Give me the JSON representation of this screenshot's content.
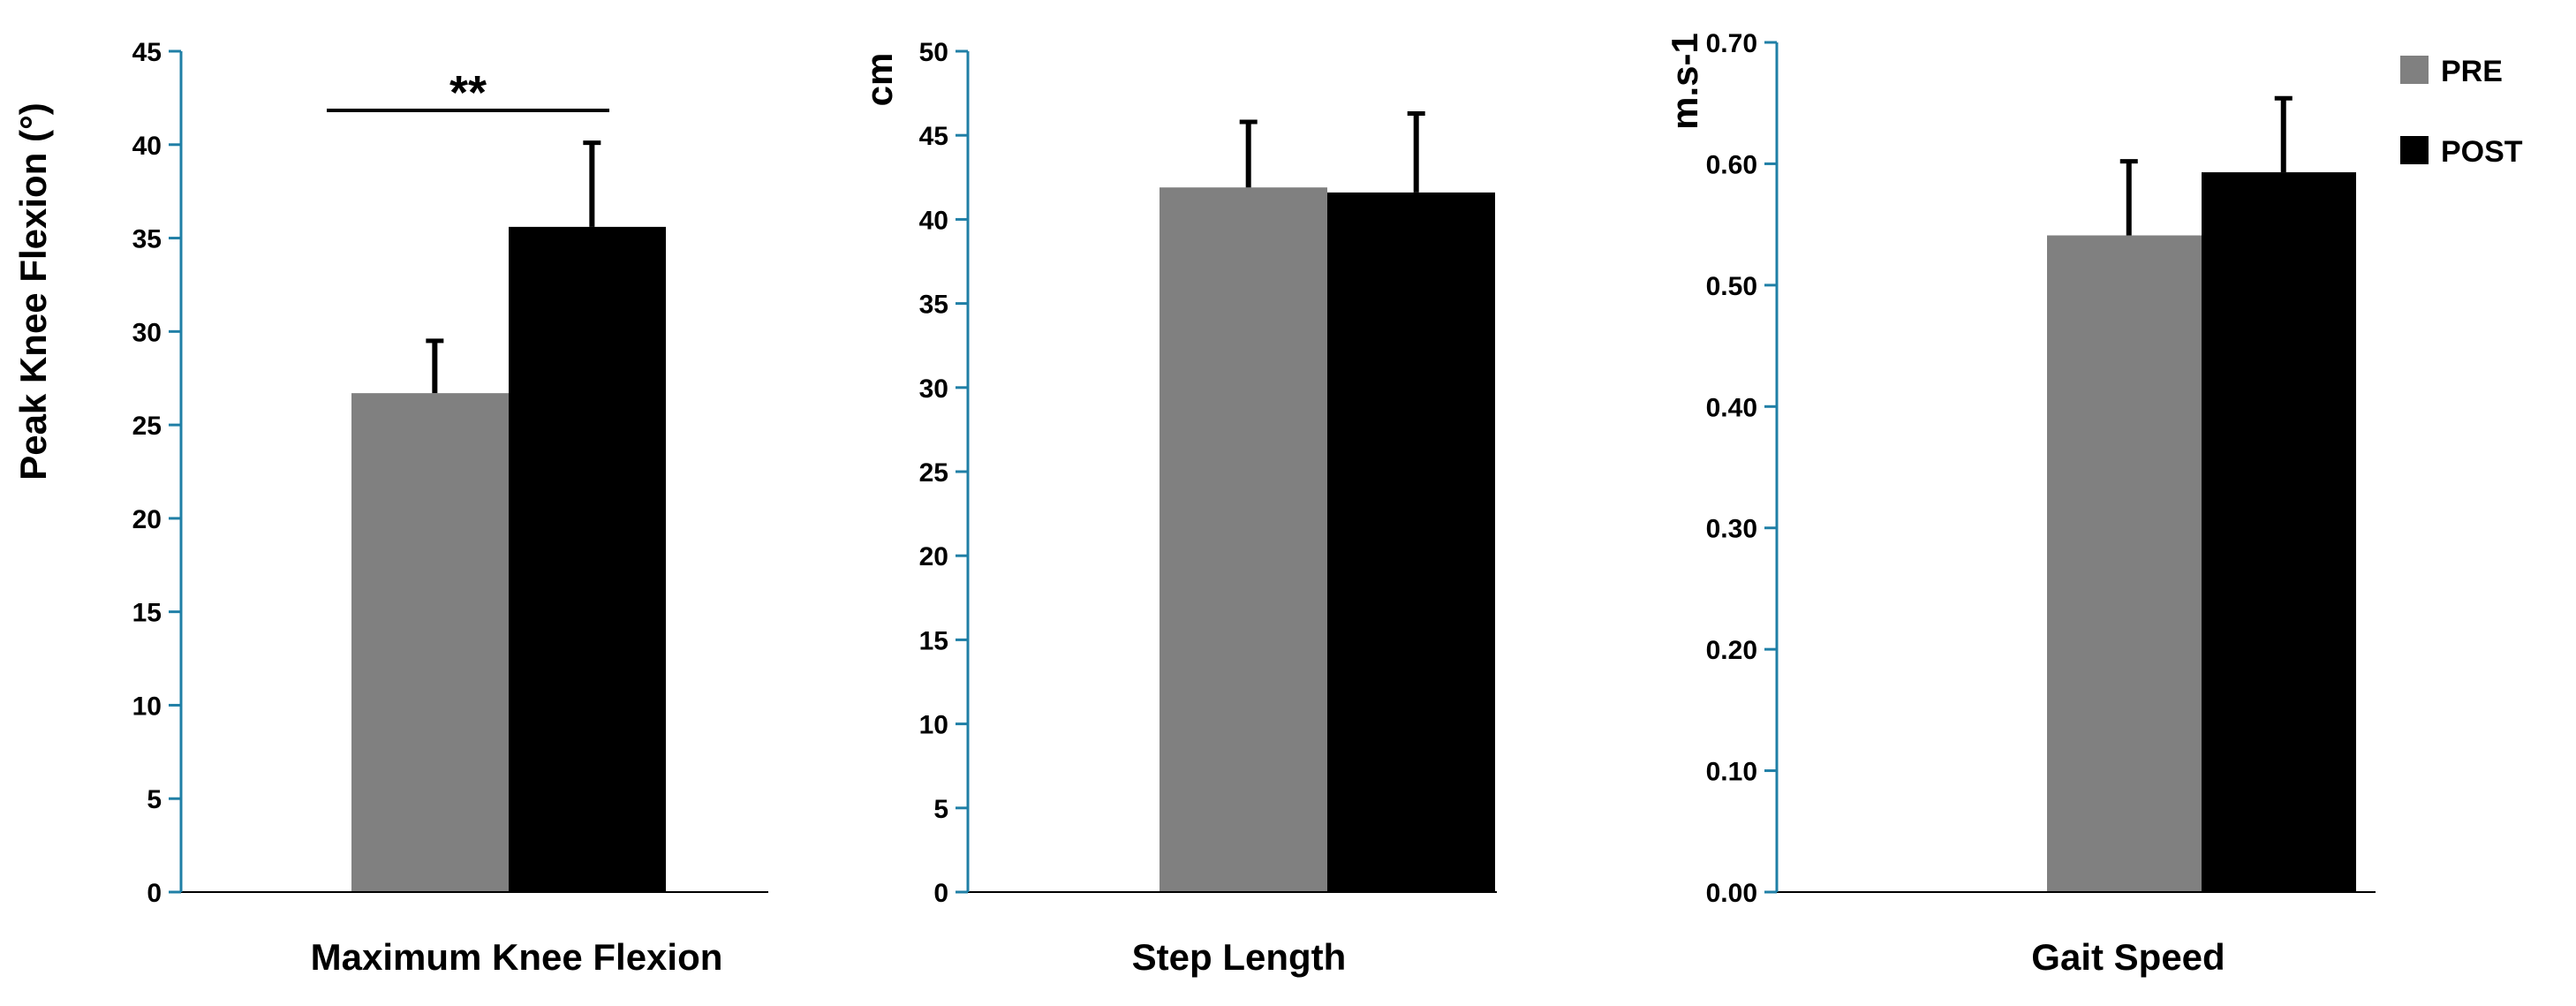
{
  "legend": [
    {
      "label": "PRE",
      "color": "#808080"
    },
    {
      "label": "POST",
      "color": "#000000"
    }
  ],
  "colors": {
    "axis": "#1f7fa6",
    "pre": "#808080",
    "post": "#000000"
  },
  "chart_data": [
    {
      "type": "bar",
      "xlabel": "Maximum Knee Flexion",
      "ylabel": "Peak Knee Flexion (°)",
      "ylim": [
        0,
        45
      ],
      "yticks": [
        {
          "value": 0,
          "label": "0"
        },
        {
          "value": 5,
          "label": "5"
        },
        {
          "value": 10,
          "label": "10"
        },
        {
          "value": 15,
          "label": "15"
        },
        {
          "value": 20,
          "label": "20"
        },
        {
          "value": 25,
          "label": "25"
        },
        {
          "value": 30,
          "label": "30"
        },
        {
          "value": 35,
          "label": "35"
        },
        {
          "value": 40,
          "label": "40"
        },
        {
          "value": 45,
          "label": "45"
        }
      ],
      "series": [
        {
          "name": "PRE",
          "value": 26.7,
          "error": 2.8
        },
        {
          "name": "POST",
          "value": 35.6,
          "error": 4.5
        }
      ],
      "significance": "**"
    },
    {
      "type": "bar",
      "xlabel": "Step Length",
      "ylabel": "cm",
      "ylim": [
        0,
        50
      ],
      "yticks": [
        {
          "value": 0,
          "label": "0"
        },
        {
          "value": 5,
          "label": "5"
        },
        {
          "value": 10,
          "label": "10"
        },
        {
          "value": 15,
          "label": "15"
        },
        {
          "value": 20,
          "label": "20"
        },
        {
          "value": 25,
          "label": "25"
        },
        {
          "value": 30,
          "label": "30"
        },
        {
          "value": 35,
          "label": "35"
        },
        {
          "value": 40,
          "label": "40"
        },
        {
          "value": 45,
          "label": "45"
        },
        {
          "value": 50,
          "label": "50"
        }
      ],
      "series": [
        {
          "name": "PRE",
          "value": 41.9,
          "error": 3.9
        },
        {
          "name": "POST",
          "value": 41.6,
          "error": 4.7
        }
      ]
    },
    {
      "type": "bar",
      "xlabel": "Gait Speed",
      "ylabel": "m.s-1",
      "ylim": [
        0,
        0.7
      ],
      "yticks": [
        {
          "value": 0,
          "label": "0.00"
        },
        {
          "value": 0.1,
          "label": "0.10"
        },
        {
          "value": 0.2,
          "label": "0.20"
        },
        {
          "value": 0.3,
          "label": "0.30"
        },
        {
          "value": 0.4,
          "label": "0.40"
        },
        {
          "value": 0.5,
          "label": "0.50"
        },
        {
          "value": 0.6,
          "label": "0.60"
        },
        {
          "value": 0.7,
          "label": "0.70"
        }
      ],
      "series": [
        {
          "name": "PRE",
          "value": 0.541,
          "error": 0.061
        },
        {
          "name": "POST",
          "value": 0.593,
          "error": 0.061
        }
      ]
    }
  ]
}
